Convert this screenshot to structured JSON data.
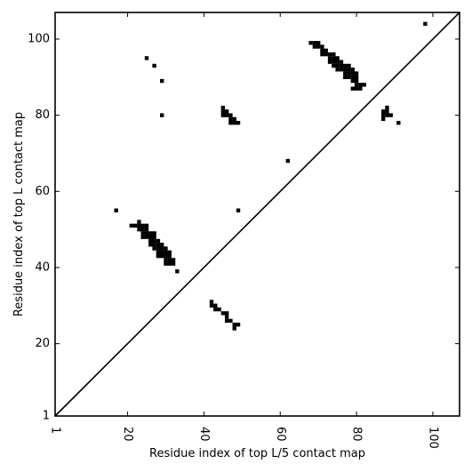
{
  "chart_data": {
    "type": "heatmap",
    "title": "",
    "xlabel": "Residue index of top L/5 contact map",
    "ylabel": "Residue index of top L contact map",
    "xlim": [
      1,
      107
    ],
    "ylim": [
      1,
      107
    ],
    "x_ticks": [
      1,
      20,
      40,
      60,
      80,
      100
    ],
    "y_ticks": [
      1,
      20,
      40,
      60,
      80,
      100
    ],
    "x_tick_labels": [
      "1",
      "20",
      "40",
      "60",
      "80",
      "100"
    ],
    "y_tick_labels": [
      "1",
      "20",
      "40",
      "60",
      "80",
      "100"
    ],
    "x_tick_rotation": -90,
    "diagonal_line": true,
    "grid": false,
    "cell_color": "#000000",
    "background_color": "#ffffff",
    "series": [
      {
        "region": "upper-left",
        "cells": [
          [
            25,
            95
          ],
          [
            27,
            93
          ],
          [
            29,
            89
          ],
          [
            29,
            80
          ],
          [
            62,
            68
          ],
          [
            98,
            104
          ],
          [
            17,
            55
          ],
          [
            49,
            55
          ],
          [
            33,
            39
          ],
          [
            91,
            78
          ],
          [
            45,
            82
          ],
          [
            45,
            81
          ],
          [
            46,
            81
          ],
          [
            45,
            80
          ],
          [
            46,
            80
          ],
          [
            47,
            80
          ],
          [
            47,
            79
          ],
          [
            48,
            79
          ],
          [
            47,
            78
          ],
          [
            48,
            78
          ],
          [
            49,
            78
          ],
          [
            68,
            99
          ],
          [
            69,
            99
          ],
          [
            70,
            99
          ],
          [
            69,
            98
          ],
          [
            70,
            98
          ],
          [
            71,
            98
          ],
          [
            71,
            97
          ],
          [
            72,
            97
          ],
          [
            71,
            96
          ],
          [
            72,
            96
          ],
          [
            73,
            96
          ],
          [
            74,
            96
          ],
          [
            73,
            95
          ],
          [
            74,
            95
          ],
          [
            75,
            95
          ],
          [
            73,
            94
          ],
          [
            74,
            94
          ],
          [
            75,
            94
          ],
          [
            76,
            94
          ],
          [
            74,
            93
          ],
          [
            75,
            93
          ],
          [
            76,
            93
          ],
          [
            77,
            93
          ],
          [
            78,
            93
          ],
          [
            75,
            92
          ],
          [
            76,
            92
          ],
          [
            77,
            92
          ],
          [
            78,
            92
          ],
          [
            79,
            92
          ],
          [
            77,
            91
          ],
          [
            78,
            91
          ],
          [
            79,
            91
          ],
          [
            80,
            91
          ],
          [
            77,
            90
          ],
          [
            78,
            90
          ],
          [
            79,
            90
          ],
          [
            80,
            90
          ],
          [
            79,
            89
          ],
          [
            80,
            89
          ],
          [
            80,
            88
          ],
          [
            81,
            88
          ],
          [
            82,
            88
          ],
          [
            79,
            87
          ],
          [
            80,
            87
          ],
          [
            81,
            87
          ],
          [
            87,
            81
          ],
          [
            88,
            82
          ],
          [
            88,
            81
          ],
          [
            87,
            80
          ],
          [
            88,
            80
          ],
          [
            89,
            80
          ],
          [
            87,
            79
          ]
        ]
      },
      {
        "region": "lower-right",
        "cells": [
          [
            21,
            51
          ],
          [
            22,
            51
          ],
          [
            23,
            52
          ],
          [
            23,
            51
          ],
          [
            24,
            51
          ],
          [
            25,
            51
          ],
          [
            23,
            50
          ],
          [
            24,
            50
          ],
          [
            25,
            50
          ],
          [
            24,
            49
          ],
          [
            25,
            49
          ],
          [
            26,
            49
          ],
          [
            27,
            49
          ],
          [
            24,
            48
          ],
          [
            25,
            48
          ],
          [
            26,
            48
          ],
          [
            27,
            48
          ],
          [
            26,
            47
          ],
          [
            27,
            47
          ],
          [
            28,
            47
          ],
          [
            26,
            46
          ],
          [
            27,
            46
          ],
          [
            28,
            46
          ],
          [
            29,
            46
          ],
          [
            27,
            45
          ],
          [
            28,
            45
          ],
          [
            29,
            45
          ],
          [
            30,
            45
          ],
          [
            28,
            44
          ],
          [
            29,
            44
          ],
          [
            30,
            44
          ],
          [
            31,
            44
          ],
          [
            28,
            43
          ],
          [
            29,
            43
          ],
          [
            30,
            43
          ],
          [
            31,
            43
          ],
          [
            30,
            42
          ],
          [
            31,
            42
          ],
          [
            32,
            42
          ],
          [
            30,
            41
          ],
          [
            31,
            41
          ],
          [
            32,
            41
          ],
          [
            42,
            31
          ],
          [
            42,
            30
          ],
          [
            43,
            30
          ],
          [
            43,
            29
          ],
          [
            44,
            29
          ],
          [
            45,
            28
          ],
          [
            46,
            28
          ],
          [
            46,
            27
          ],
          [
            46,
            26
          ],
          [
            47,
            26
          ],
          [
            48,
            25
          ],
          [
            49,
            25
          ],
          [
            48,
            24
          ]
        ]
      }
    ]
  }
}
